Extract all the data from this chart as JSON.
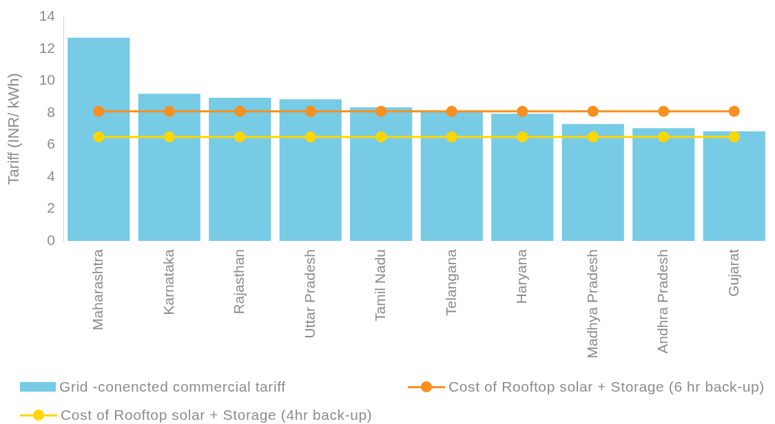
{
  "chart_data": {
    "type": "bar",
    "ylabel": "Tariff (INR/ kWh)",
    "categories": [
      "Maharashtra",
      "Karnataka",
      "Rajasthan",
      "Uttar Pradesh",
      "Tamil Nadu",
      "Telangana",
      "Haryana",
      "Madhya Pradesh",
      "Andhra Pradesh",
      "Gujarat"
    ],
    "series": [
      {
        "name": "Grid -conencted commercial tariff",
        "color": "#77cbe5",
        "values": [
          12.7,
          9.2,
          8.95,
          8.85,
          8.35,
          8.05,
          7.95,
          7.3,
          7.05,
          6.85
        ]
      },
      {
        "name": "Cost of Rooftop solar + Storage (6 hr back-up)",
        "type": "line",
        "color": "#f7901e",
        "values": [
          8.1,
          8.1,
          8.1,
          8.1,
          8.1,
          8.1,
          8.1,
          8.1,
          8.1,
          8.1
        ]
      },
      {
        "name": "Cost of Rooftop solar + Storage (4hr back-up)",
        "type": "line",
        "color": "#ffd700",
        "values": [
          6.5,
          6.5,
          6.5,
          6.5,
          6.5,
          6.5,
          6.5,
          6.5,
          6.5,
          6.5
        ]
      }
    ],
    "ylim": [
      0,
      14
    ],
    "yticks": [
      0,
      2,
      4,
      6,
      8,
      10,
      12,
      14
    ],
    "grid": false,
    "legend": "bottom",
    "marker": "circle"
  }
}
